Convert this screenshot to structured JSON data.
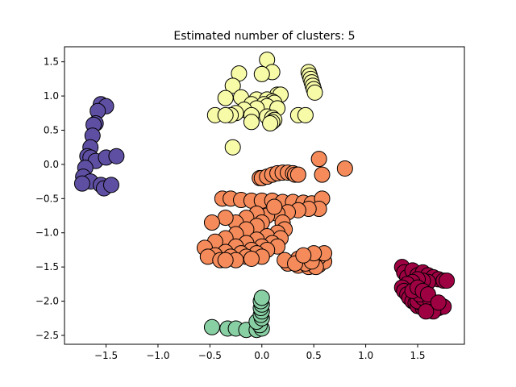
{
  "chart_data": {
    "type": "scatter",
    "title": "Estimated number of clusters: 5",
    "xlabel": "",
    "ylabel": "",
    "xlim": [
      -1.9,
      1.95
    ],
    "ylim": [
      -2.63,
      1.72
    ],
    "grid": false,
    "xticks": [
      -1.5,
      -1.0,
      -0.5,
      0.0,
      0.5,
      1.0,
      1.5
    ],
    "xtick_labels": [
      "−1.5",
      "−1.0",
      "−0.5",
      "0.0",
      "0.5",
      "1.0",
      "1.5"
    ],
    "yticks": [
      1.5,
      1.0,
      0.5,
      0.0,
      -0.5,
      -1.0,
      -1.5,
      -2.0,
      -2.5
    ],
    "ytick_labels": [
      "1.5",
      "1.0",
      "0.5",
      "0.0",
      "−0.5",
      "−1.0",
      "−1.5",
      "−2.0",
      "−2.5"
    ],
    "series": [
      {
        "color": "#f7faa6",
        "points": [
          [
            0.05,
            1.53
          ],
          [
            0.1,
            1.35
          ],
          [
            -0.22,
            1.33
          ],
          [
            0.0,
            1.32
          ],
          [
            -0.28,
            1.15
          ],
          [
            0.15,
            1.02
          ],
          [
            0.18,
            1.02
          ],
          [
            0.45,
            1.35
          ],
          [
            0.46,
            1.3
          ],
          [
            0.47,
            1.25
          ],
          [
            0.48,
            1.2
          ],
          [
            0.49,
            1.15
          ],
          [
            0.5,
            1.1
          ],
          [
            0.51,
            1.05
          ],
          [
            -0.35,
            0.97
          ],
          [
            -0.2,
            0.98
          ],
          [
            -0.05,
            0.95
          ],
          [
            0.05,
            0.95
          ],
          [
            0.1,
            0.92
          ],
          [
            0.12,
            0.9
          ],
          [
            -0.1,
            0.88
          ],
          [
            0.02,
            0.88
          ],
          [
            0.05,
            0.85
          ],
          [
            0.15,
            0.82
          ],
          [
            -0.05,
            0.82
          ],
          [
            -0.17,
            0.8
          ],
          [
            -0.25,
            0.75
          ],
          [
            -0.3,
            0.72
          ],
          [
            -0.45,
            0.72
          ],
          [
            -0.35,
            0.72
          ],
          [
            -0.1,
            0.72
          ],
          [
            0.05,
            0.7
          ],
          [
            0.1,
            0.68
          ],
          [
            0.12,
            0.65
          ],
          [
            0.1,
            0.62
          ],
          [
            0.08,
            0.6
          ],
          [
            -0.1,
            0.62
          ],
          [
            0.35,
            0.72
          ],
          [
            0.42,
            0.72
          ],
          [
            -0.28,
            0.25
          ]
        ]
      },
      {
        "color": "#f58a5a",
        "points": [
          [
            -0.02,
            -0.2
          ],
          [
            0.0,
            -0.2
          ],
          [
            0.05,
            -0.18
          ],
          [
            0.1,
            -0.15
          ],
          [
            0.15,
            -0.13
          ],
          [
            0.2,
            -0.12
          ],
          [
            0.25,
            -0.12
          ],
          [
            0.3,
            -0.13
          ],
          [
            0.32,
            -0.15
          ],
          [
            0.35,
            -0.15
          ],
          [
            0.55,
            0.08
          ],
          [
            0.58,
            -0.15
          ],
          [
            0.8,
            -0.06
          ],
          [
            -0.38,
            -0.5
          ],
          [
            -0.3,
            -0.5
          ],
          [
            -0.2,
            -0.52
          ],
          [
            -0.1,
            -0.53
          ],
          [
            0.0,
            -0.53
          ],
          [
            0.1,
            -0.53
          ],
          [
            0.2,
            -0.55
          ],
          [
            0.3,
            -0.55
          ],
          [
            0.4,
            -0.56
          ],
          [
            0.48,
            -0.57
          ],
          [
            0.58,
            -0.5
          ],
          [
            0.55,
            -0.65
          ],
          [
            0.45,
            -0.65
          ],
          [
            0.35,
            -0.67
          ],
          [
            0.25,
            -0.7
          ],
          [
            0.15,
            -0.72
          ],
          [
            0.05,
            -0.75
          ],
          [
            0.12,
            -0.62
          ],
          [
            -0.05,
            -0.72
          ],
          [
            -0.15,
            -0.78
          ],
          [
            -0.25,
            -0.85
          ],
          [
            -0.35,
            -0.78
          ],
          [
            -0.48,
            -0.85
          ],
          [
            0.0,
            -0.85
          ],
          [
            0.2,
            -0.85
          ],
          [
            0.22,
            -0.95
          ],
          [
            -0.05,
            -0.9
          ],
          [
            -0.15,
            -0.95
          ],
          [
            -0.25,
            -1.02
          ],
          [
            -0.35,
            -1.08
          ],
          [
            -0.45,
            -1.13
          ],
          [
            -0.55,
            -1.22
          ],
          [
            0.15,
            -1.0
          ],
          [
            0.05,
            -1.05
          ],
          [
            -0.05,
            -1.1
          ],
          [
            -0.15,
            -1.15
          ],
          [
            -0.25,
            -1.2
          ],
          [
            -0.35,
            -1.28
          ],
          [
            -0.45,
            -1.33
          ],
          [
            -0.52,
            -1.35
          ],
          [
            0.18,
            -1.08
          ],
          [
            0.1,
            -1.15
          ],
          [
            0.0,
            -1.2
          ],
          [
            -0.1,
            -1.25
          ],
          [
            -0.2,
            -1.3
          ],
          [
            -0.3,
            -1.35
          ],
          [
            -0.4,
            -1.4
          ],
          [
            0.15,
            -1.2
          ],
          [
            0.05,
            -1.25
          ],
          [
            -0.05,
            -1.3
          ],
          [
            -0.15,
            -1.35
          ],
          [
            -0.25,
            -1.4
          ],
          [
            -0.35,
            -1.4
          ],
          [
            0.0,
            -1.35
          ],
          [
            -0.1,
            -1.38
          ],
          [
            0.25,
            -1.45
          ],
          [
            0.35,
            -1.48
          ],
          [
            0.45,
            -1.5
          ],
          [
            0.55,
            -1.47
          ],
          [
            0.6,
            -1.42
          ],
          [
            0.55,
            -1.35
          ],
          [
            0.45,
            -1.35
          ],
          [
            0.35,
            -1.38
          ],
          [
            0.22,
            -1.4
          ],
          [
            0.52,
            -1.5
          ],
          [
            0.42,
            -1.45
          ],
          [
            0.32,
            -1.45
          ],
          [
            0.48,
            -1.42
          ],
          [
            0.6,
            -1.3
          ],
          [
            0.5,
            -1.3
          ],
          [
            0.4,
            -1.33
          ]
        ]
      },
      {
        "color": "#5e4fa2",
        "points": [
          [
            -1.55,
            0.88
          ],
          [
            -1.5,
            0.85
          ],
          [
            -1.58,
            0.78
          ],
          [
            -1.6,
            0.6
          ],
          [
            -1.62,
            0.58
          ],
          [
            -1.63,
            0.42
          ],
          [
            -1.65,
            0.25
          ],
          [
            -1.68,
            0.12
          ],
          [
            -1.65,
            0.1
          ],
          [
            -1.6,
            0.05
          ],
          [
            -1.5,
            0.1
          ],
          [
            -1.4,
            0.12
          ],
          [
            -1.7,
            -0.05
          ],
          [
            -1.72,
            -0.18
          ],
          [
            -1.65,
            -0.25
          ],
          [
            -1.73,
            -0.28
          ],
          [
            -1.55,
            -0.3
          ],
          [
            -1.52,
            -0.35
          ],
          [
            -1.45,
            -0.3
          ]
        ]
      },
      {
        "color": "#9e0142",
        "points": [
          [
            1.35,
            -1.5
          ],
          [
            1.37,
            -1.58
          ],
          [
            1.4,
            -1.65
          ],
          [
            1.45,
            -1.55
          ],
          [
            1.5,
            -1.62
          ],
          [
            1.55,
            -1.58
          ],
          [
            1.6,
            -1.62
          ],
          [
            1.65,
            -1.65
          ],
          [
            1.7,
            -1.68
          ],
          [
            1.75,
            -1.7
          ],
          [
            1.78,
            -1.7
          ],
          [
            1.6,
            -1.72
          ],
          [
            1.55,
            -1.7
          ],
          [
            1.5,
            -1.68
          ],
          [
            1.45,
            -1.72
          ],
          [
            1.4,
            -1.75
          ],
          [
            1.35,
            -1.8
          ],
          [
            1.37,
            -1.85
          ],
          [
            1.4,
            -1.9
          ],
          [
            1.42,
            -1.95
          ],
          [
            1.45,
            -2.0
          ],
          [
            1.48,
            -2.03
          ],
          [
            1.5,
            -2.07
          ],
          [
            1.55,
            -2.1
          ],
          [
            1.6,
            -2.12
          ],
          [
            1.65,
            -2.12
          ],
          [
            1.7,
            -2.1
          ],
          [
            1.75,
            -2.08
          ],
          [
            1.65,
            -2.05
          ],
          [
            1.55,
            -2.05
          ],
          [
            1.5,
            -2.0
          ],
          [
            1.55,
            -1.95
          ],
          [
            1.62,
            -1.98
          ],
          [
            1.52,
            -1.9
          ],
          [
            1.45,
            -1.85
          ],
          [
            1.5,
            -1.8
          ],
          [
            1.55,
            -1.85
          ],
          [
            1.6,
            -1.9
          ],
          [
            1.65,
            -2.15
          ],
          [
            1.58,
            -2.15
          ],
          [
            1.7,
            -2.02
          ]
        ]
      },
      {
        "color": "#88d0a4",
        "points": [
          [
            -0.48,
            -2.38
          ],
          [
            -0.33,
            -2.4
          ],
          [
            -0.25,
            -2.4
          ],
          [
            -0.15,
            -2.42
          ],
          [
            -0.05,
            -2.42
          ],
          [
            0.0,
            -2.4
          ],
          [
            -0.02,
            -2.35
          ],
          [
            -0.05,
            -2.3
          ],
          [
            0.0,
            -2.25
          ],
          [
            -0.01,
            -2.2
          ],
          [
            0.0,
            -2.15
          ],
          [
            -0.01,
            -2.1
          ],
          [
            0.0,
            -2.05
          ],
          [
            -0.01,
            -2.0
          ],
          [
            0.0,
            -1.95
          ]
        ]
      }
    ]
  }
}
